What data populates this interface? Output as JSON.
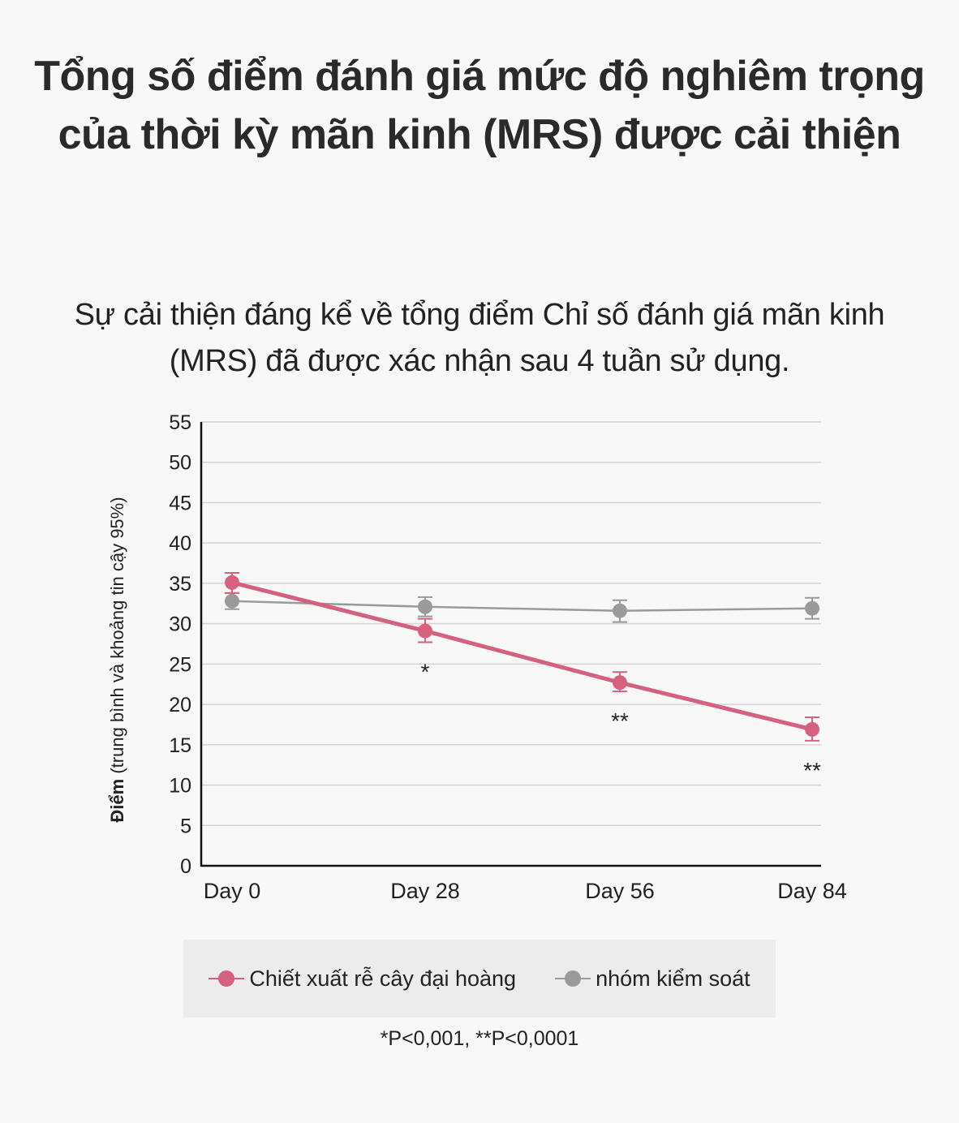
{
  "title": "Tổng số điểm đánh giá mức độ nghiêm trọng của thời kỳ mãn kinh (MRS) được cải thiện",
  "subtitle": "Sự cải thiện đáng kể về tổng điểm Chỉ số đánh giá mãn kinh (MRS) đã được xác nhận sau 4 tuần sử dụng.",
  "footnote": "*P<0,001, **P<0,0001",
  "chart_data": {
    "type": "line",
    "ylabel_bold": "Điểm",
    "ylabel_rest": " (trung bình và khoảng tin cậy 95%)",
    "categories": [
      "Day 0",
      "Day 28",
      "Day 56",
      "Day 84"
    ],
    "ylim": [
      0,
      55
    ],
    "yticks": [
      0,
      5,
      10,
      15,
      20,
      25,
      30,
      35,
      40,
      45,
      50,
      55
    ],
    "grid": true,
    "legend_position": "bottom",
    "series": [
      {
        "name": "Chiết xuất rễ cây đại hoàng",
        "color": "#d6607f",
        "values": [
          35.1,
          29.1,
          22.7,
          16.9
        ],
        "ci_low": [
          33.8,
          27.7,
          21.6,
          15.5
        ],
        "ci_high": [
          36.3,
          30.6,
          24.0,
          18.4
        ]
      },
      {
        "name": "nhóm kiểm soát",
        "color": "#9a9a9a",
        "values": [
          32.8,
          32.1,
          31.6,
          31.9
        ],
        "ci_low": [
          31.8,
          30.9,
          30.2,
          30.6
        ],
        "ci_high": [
          33.8,
          33.3,
          32.9,
          33.2
        ]
      }
    ],
    "annotations": [
      "",
      "*",
      "**",
      "**"
    ]
  }
}
